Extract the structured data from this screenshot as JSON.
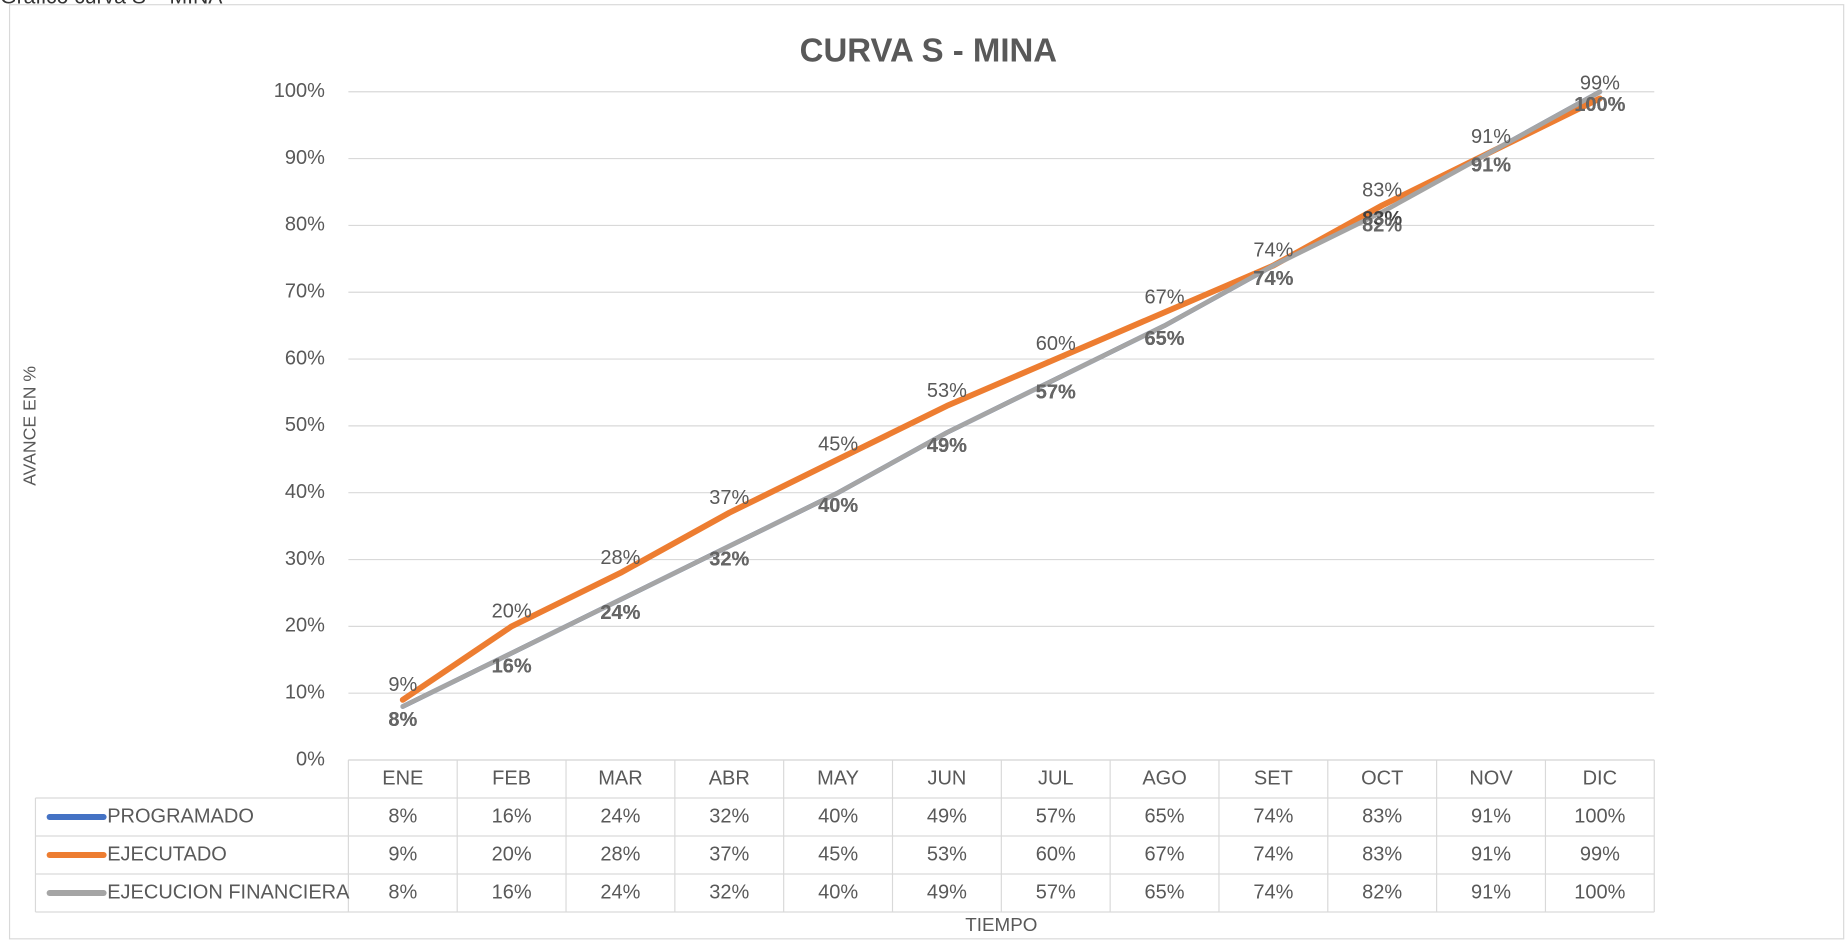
{
  "page_label": "Gráfico curva S – MINA",
  "chart_data": {
    "type": "line",
    "title": "CURVA S - MINA",
    "y_axis_label": "AVANCE EN %",
    "x_axis_label": "TIEMPO",
    "categories": [
      "ENE",
      "FEB",
      "MAR",
      "ABR",
      "MAY",
      "JUN",
      "JUL",
      "AGO",
      "SET",
      "OCT",
      "NOV",
      "DIC"
    ],
    "series": [
      {
        "name": "PROGRAMADO",
        "color": "#4472c4",
        "values": [
          8,
          16,
          24,
          32,
          40,
          49,
          57,
          65,
          74,
          83,
          91,
          100
        ],
        "value_labels": [
          "8%",
          "16%",
          "24%",
          "32%",
          "40%",
          "49%",
          "57%",
          "65%",
          "74%",
          "83%",
          "91%",
          "100%"
        ]
      },
      {
        "name": "EJECUTADO",
        "color": "#ed7d31",
        "values": [
          9,
          20,
          28,
          37,
          45,
          53,
          60,
          67,
          74,
          83,
          91,
          99
        ],
        "value_labels": [
          "9%",
          "20%",
          "28%",
          "37%",
          "45%",
          "53%",
          "60%",
          "67%",
          "74%",
          "83%",
          "91%",
          "99%"
        ]
      },
      {
        "name": "EJECUCION FINANCIERA",
        "color": "#a5a5a5",
        "values": [
          8,
          16,
          24,
          32,
          40,
          49,
          57,
          65,
          74,
          82,
          91,
          100
        ],
        "value_labels": [
          "8%",
          "16%",
          "24%",
          "32%",
          "40%",
          "49%",
          "57%",
          "65%",
          "74%",
          "82%",
          "91%",
          "100%"
        ]
      }
    ],
    "ylim": [
      0,
      100
    ],
    "yticks": [
      {
        "value": 0,
        "label": "0%"
      },
      {
        "value": 10,
        "label": "10%"
      },
      {
        "value": 20,
        "label": "20%"
      },
      {
        "value": 30,
        "label": "30%"
      },
      {
        "value": 40,
        "label": "40%"
      },
      {
        "value": 50,
        "label": "50%"
      },
      {
        "value": 60,
        "label": "60%"
      },
      {
        "value": 70,
        "label": "70%"
      },
      {
        "value": 80,
        "label": "80%"
      },
      {
        "value": 90,
        "label": "90%"
      },
      {
        "value": 100,
        "label": "100%"
      }
    ],
    "grid": true
  }
}
